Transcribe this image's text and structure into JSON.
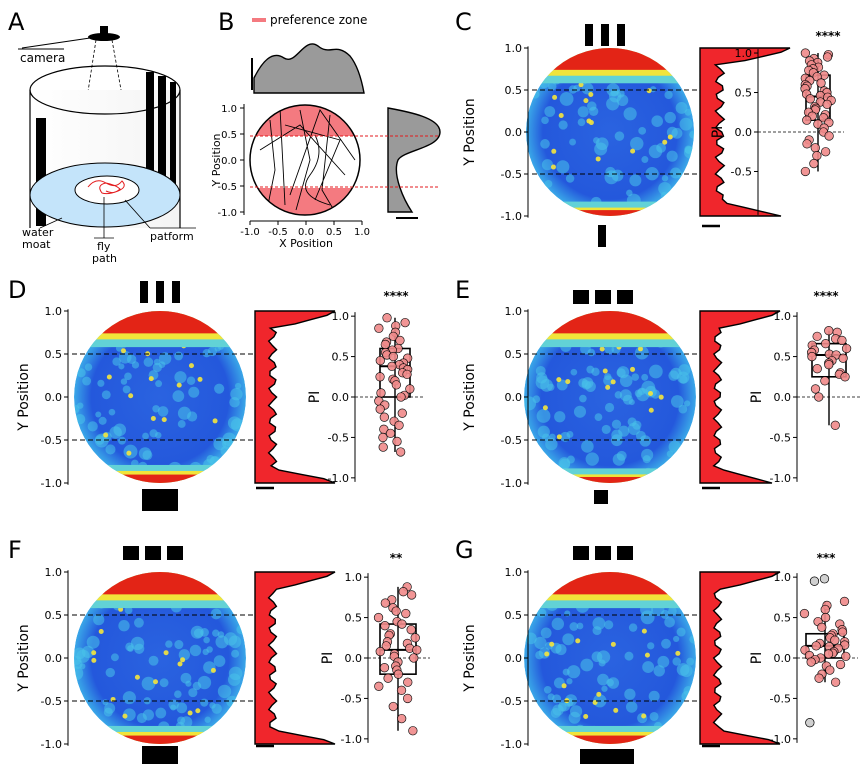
{
  "colors": {
    "heat_low": "#1c4fd8",
    "heat_mid": "#38c6e6",
    "heat_high": "#f0e53a",
    "heat_peak": "#e32416",
    "density_fill": "#f0262c",
    "zone_fill": "#f47a80",
    "panel_b_density": "#9a9a9a"
  },
  "panel_a": {
    "letter": "A",
    "labels": {
      "camera": "camera",
      "water": "water",
      "moat": "moat",
      "fly": "fly",
      "path": "path",
      "platform": "patform"
    }
  },
  "panel_b": {
    "letter": "B",
    "legend": "preference zone",
    "x_label": "X Position",
    "y_label": "Y Position",
    "x_ticks": [
      "-1.0",
      "-0.5",
      "0.0",
      "0.5",
      "1.0"
    ],
    "y_ticks": [
      "1.0",
      "0.5",
      "0.0",
      "-0.5",
      "-1.0"
    ]
  },
  "chart_data": [
    {
      "panel": "C",
      "type": "heatmap",
      "ylabel": "Y Position",
      "pi_label": "PI",
      "y_ticks": [
        "1.0",
        "0.5",
        "0.0",
        "-0.5",
        "-1.0"
      ],
      "pi_ticks": [
        "1.0",
        "0.5",
        "0.0",
        "-0.5"
      ],
      "significance": "****",
      "top_stimulus": "three-bars",
      "bottom_stimulus": "single-narrow-bar",
      "pi_box": {
        "median": 0.45,
        "q1": 0.15,
        "q3": 0.72,
        "whisker_low": -0.5,
        "whisker_high": 1.0
      },
      "pi_points": [
        1.0,
        0.98,
        0.95,
        0.93,
        0.9,
        0.88,
        0.85,
        0.82,
        0.8,
        0.78,
        0.75,
        0.72,
        0.7,
        0.68,
        0.65,
        0.62,
        0.6,
        0.58,
        0.55,
        0.52,
        0.5,
        0.48,
        0.46,
        0.44,
        0.42,
        0.4,
        0.38,
        0.35,
        0.32,
        0.3,
        0.28,
        0.25,
        0.22,
        0.2,
        0.18,
        0.15,
        0.12,
        0.1,
        0.05,
        0.0,
        -0.05,
        -0.1,
        -0.15,
        -0.2,
        -0.25,
        -0.3,
        -0.4,
        -0.5
      ]
    },
    {
      "panel": "D",
      "type": "heatmap",
      "ylabel": "Y Position",
      "pi_label": "PI",
      "y_ticks": [
        "1.0",
        "0.5",
        "0.0",
        "-0.5",
        "-1.0"
      ],
      "pi_ticks": [
        "1.0",
        "0.5",
        "0.0",
        "-0.5",
        "-1.0"
      ],
      "significance": "****",
      "top_stimulus": "three-bars",
      "bottom_stimulus": "wide-block",
      "pi_box": {
        "median": 0.38,
        "q1": 0.0,
        "q3": 0.6,
        "whisker_low": -0.68,
        "whisker_high": 0.98
      },
      "pi_points": [
        0.98,
        0.92,
        0.88,
        0.85,
        0.8,
        0.75,
        0.7,
        0.68,
        0.65,
        0.6,
        0.58,
        0.55,
        0.52,
        0.5,
        0.48,
        0.45,
        0.42,
        0.4,
        0.38,
        0.36,
        0.34,
        0.3,
        0.28,
        0.25,
        0.22,
        0.2,
        0.15,
        0.1,
        0.05,
        0.02,
        0.0,
        -0.05,
        -0.1,
        -0.15,
        -0.2,
        -0.25,
        -0.3,
        -0.35,
        -0.4,
        -0.45,
        -0.5,
        -0.55,
        -0.62,
        -0.68
      ]
    },
    {
      "panel": "E",
      "type": "heatmap",
      "ylabel": "Y Position",
      "pi_label": "PI",
      "y_ticks": [
        "1.0",
        "0.5",
        "0.0",
        "-0.5",
        "-1.0"
      ],
      "pi_ticks": [
        "1.0",
        "0.5",
        "0.0",
        "-0.5",
        "-1.0"
      ],
      "significance": "****",
      "top_stimulus": "three-squares",
      "bottom_stimulus": "single-square",
      "pi_box": {
        "median": 0.52,
        "q1": 0.25,
        "q3": 0.66,
        "whisker_low": -0.35,
        "whisker_high": 0.82
      },
      "pi_points": [
        0.82,
        0.8,
        0.75,
        0.72,
        0.7,
        0.66,
        0.64,
        0.6,
        0.58,
        0.55,
        0.53,
        0.52,
        0.5,
        0.48,
        0.45,
        0.42,
        0.4,
        0.35,
        0.3,
        0.28,
        0.25,
        0.2,
        0.1,
        0.0,
        -0.35
      ]
    },
    {
      "panel": "F",
      "type": "heatmap",
      "ylabel": "Y Position",
      "pi_label": "PI",
      "y_ticks": [
        "1.0",
        "0.5",
        "0.0",
        "-0.5",
        "-1.0"
      ],
      "pi_ticks": [
        "1.0",
        "0.5",
        "0.0",
        "-0.5",
        "-1.0"
      ],
      "significance": "**",
      "top_stimulus": "three-squares",
      "bottom_stimulus": "wide-block",
      "pi_box": {
        "median": 0.1,
        "q1": -0.2,
        "q3": 0.42,
        "whisker_low": -0.9,
        "whisker_high": 0.88
      },
      "pi_points": [
        0.88,
        0.82,
        0.78,
        0.72,
        0.68,
        0.62,
        0.58,
        0.55,
        0.5,
        0.45,
        0.42,
        0.4,
        0.35,
        0.3,
        0.28,
        0.25,
        0.2,
        0.18,
        0.15,
        0.12,
        0.1,
        0.08,
        0.05,
        0.02,
        0.0,
        -0.05,
        -0.1,
        -0.12,
        -0.15,
        -0.2,
        -0.25,
        -0.3,
        -0.35,
        -0.4,
        -0.5,
        -0.6,
        -0.75,
        -0.9
      ]
    },
    {
      "panel": "G",
      "type": "heatmap",
      "ylabel": "Y Position",
      "pi_label": "PI",
      "y_ticks": [
        "1.0",
        "0.5",
        "0.0",
        "-0.5",
        "-1.0"
      ],
      "pi_ticks": [
        "1.0",
        "0.5",
        "0.0",
        "-0.5",
        "-1.0"
      ],
      "significance": "***",
      "top_stimulus": "three-squares",
      "bottom_stimulus": "medium-block",
      "pi_box": {
        "median": 0.15,
        "q1": 0.0,
        "q3": 0.3,
        "whisker_low": -0.3,
        "whisker_high": 0.7
      },
      "pi_points": [
        0.7,
        0.65,
        0.6,
        0.55,
        0.5,
        0.45,
        0.42,
        0.38,
        0.35,
        0.32,
        0.3,
        0.28,
        0.25,
        0.22,
        0.2,
        0.18,
        0.16,
        0.15,
        0.14,
        0.12,
        0.1,
        0.08,
        0.06,
        0.05,
        0.03,
        0.02,
        0.0,
        -0.02,
        -0.05,
        -0.08,
        -0.1,
        -0.15,
        -0.2,
        -0.25,
        -0.3
      ],
      "pi_outliers": [
        0.98,
        0.95,
        -0.8
      ]
    }
  ]
}
